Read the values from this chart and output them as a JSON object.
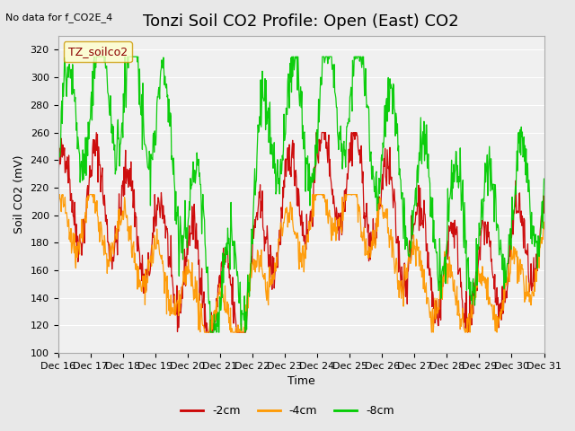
{
  "title": "Tonzi Soil CO2 Profile: Open (East) CO2",
  "subtitle": "No data for f_CO2E_4",
  "ylabel": "Soil CO2 (mV)",
  "xlabel": "Time",
  "legend_label": "TZ_soilco2",
  "series_labels": [
    "-2cm",
    "-4cm",
    "-8cm"
  ],
  "series_colors": [
    "#cc0000",
    "#ff9900",
    "#00cc00"
  ],
  "ylim": [
    100,
    330
  ],
  "yticks": [
    100,
    120,
    140,
    160,
    180,
    200,
    220,
    240,
    260,
    280,
    300,
    320
  ],
  "background_color": "#e8e8e8",
  "plot_bg_color": "#f0f0f0",
  "n_points": 900,
  "title_fontsize": 13,
  "axis_fontsize": 9,
  "tick_fontsize": 8,
  "xtick_labels": [
    "Dec 16",
    "Dec 17",
    "Dec 18",
    "Dec 19",
    "Dec 20",
    "Dec 21",
    "Dec 22",
    "Dec 23",
    "Dec 24",
    "Dec 25",
    "Dec 26",
    "Dec 27",
    "Dec 28",
    "Dec 29",
    "Dec 30",
    "Dec 31"
  ]
}
